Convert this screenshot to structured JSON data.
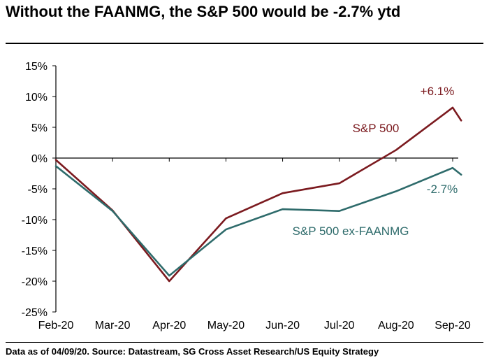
{
  "title": "Without the FAANMG, the S&P 500 would be -2.7% ytd",
  "footer": "Data as of 04/09/20. Source: Datastream, SG Cross Asset Research/US Equity Strategy",
  "chart_data": {
    "type": "line",
    "categories": [
      "Feb-20",
      "Mar-20",
      "Apr-20",
      "May-20",
      "Jun-20",
      "Jul-20",
      "Aug-20",
      "Sep-20"
    ],
    "x": [
      0,
      1,
      2,
      3,
      4,
      5,
      6,
      7,
      7.15
    ],
    "ylim": [
      -25,
      15
    ],
    "yticks": [
      15,
      10,
      5,
      0,
      -5,
      -10,
      -15,
      -20,
      -25
    ],
    "ytick_labels": [
      "15%",
      "10%",
      "5%",
      "0%",
      "-5%",
      "-10%",
      "-15%",
      "-20%",
      "-25%"
    ],
    "grid": false,
    "series": [
      {
        "name": "S&P 500",
        "color": "#7b1a1f",
        "values": [
          -0.3,
          -8.5,
          -20.0,
          -9.8,
          -5.7,
          -4.1,
          1.3,
          8.2,
          6.1
        ],
        "end_label": "+6.1%"
      },
      {
        "name": "S&P 500 ex-FAANMG",
        "color": "#2e6b6b",
        "values": [
          -1.3,
          -8.6,
          -19.1,
          -11.6,
          -8.3,
          -8.6,
          -5.4,
          -1.6,
          -2.7
        ],
        "end_label": "-2.7%"
      }
    ]
  }
}
